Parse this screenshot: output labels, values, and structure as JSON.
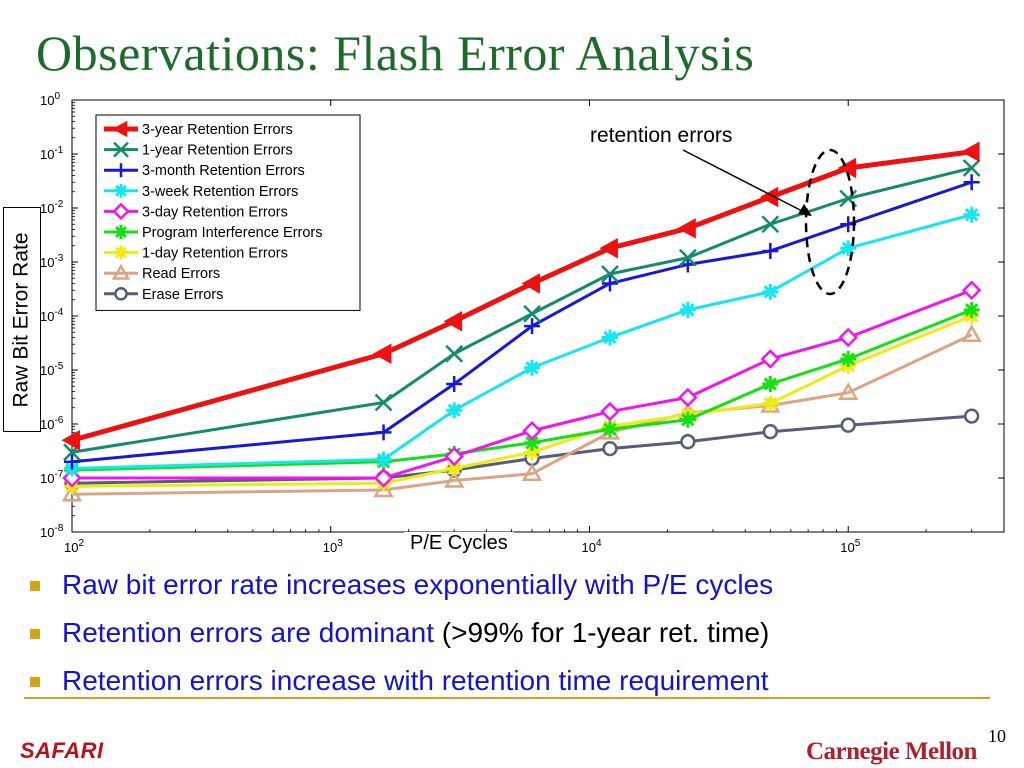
{
  "slide": {
    "title": "Observations: Flash Error Analysis",
    "page_number": "10",
    "logo_left": "SAFARI",
    "logo_right": "Carnegie Mellon",
    "accent_color": "#d6a11c",
    "title_color": "#1d6b2c",
    "bullets": [
      {
        "parts": [
          {
            "text": "Raw bit error rate increases exponentially with P/E cycles",
            "color": "blue"
          }
        ]
      },
      {
        "parts": [
          {
            "text": "Retention errors are dominant",
            "color": "blue"
          },
          {
            "text": " (>99% for 1-year ret. time)",
            "color": "black"
          }
        ]
      },
      {
        "parts": [
          {
            "text": "Retention errors increase with retention time requirement",
            "color": "blue"
          }
        ]
      }
    ]
  },
  "chart_data": {
    "type": "line",
    "xlabel": "P/E Cycles",
    "ylabel": "Raw Bit Error Rate",
    "x_scale": "log",
    "y_scale": "log",
    "xlim": [
      100,
      400000
    ],
    "ylim": [
      1e-08,
      1
    ],
    "x_ticks": [
      {
        "value": 100,
        "base": "10",
        "exp": "2"
      },
      {
        "value": 1000,
        "base": "10",
        "exp": "3"
      },
      {
        "value": 10000,
        "base": "10",
        "exp": "4"
      },
      {
        "value": 100000,
        "base": "10",
        "exp": "5"
      }
    ],
    "y_ticks": [
      {
        "value": 1,
        "base": "10",
        "exp": "0"
      },
      {
        "value": 0.1,
        "base": "10",
        "exp": "-1"
      },
      {
        "value": 0.01,
        "base": "10",
        "exp": "-2"
      },
      {
        "value": 0.001,
        "base": "10",
        "exp": "-3"
      },
      {
        "value": 0.0001,
        "base": "10",
        "exp": "-4"
      },
      {
        "value": 1e-05,
        "base": "10",
        "exp": "-5"
      },
      {
        "value": 1e-06,
        "base": "10",
        "exp": "-6"
      },
      {
        "value": 1e-07,
        "base": "10",
        "exp": "-7"
      },
      {
        "value": 1e-08,
        "base": "10",
        "exp": "-8"
      }
    ],
    "grid": false,
    "legend_position": "top-left",
    "x": [
      100,
      1600,
      3000,
      6000,
      12000,
      24000,
      50000,
      100000,
      300000
    ],
    "series": [
      {
        "name": "3-year Retention Errors",
        "color": "#ee1111",
        "marker": "triangle-left",
        "values": [
          5e-07,
          2e-05,
          8e-05,
          0.0004,
          0.0018,
          0.0042,
          0.016,
          0.055,
          0.11
        ]
      },
      {
        "name": "1-year Retention Errors",
        "color": "#148a6e",
        "marker": "x",
        "values": [
          3e-07,
          2.5e-06,
          2e-05,
          0.00011,
          0.0006,
          0.0012,
          0.005,
          0.015,
          0.055
        ]
      },
      {
        "name": "3-month Retention Errors",
        "color": "#1818d8",
        "marker": "plus",
        "values": [
          2e-07,
          7e-07,
          5.5e-06,
          6.5e-05,
          0.0004,
          0.0009,
          0.0016,
          0.005,
          0.03
        ]
      },
      {
        "name": "3-week Retention Errors",
        "color": "#16e6f0",
        "marker": "star",
        "values": [
          1.5e-07,
          2.2e-07,
          1.8e-06,
          1.1e-05,
          4e-05,
          0.00013,
          0.00028,
          0.0018,
          0.0075
        ]
      },
      {
        "name": "3-day Retention Errors",
        "color": "#f014f0",
        "marker": "diamond",
        "values": [
          1e-07,
          1e-07,
          2.5e-07,
          7.5e-07,
          1.7e-06,
          3.1e-06,
          1.6e-05,
          4e-05,
          0.0003
        ]
      },
      {
        "name": "Program Interference Errors",
        "color": "#14e014",
        "marker": "star",
        "values": [
          1.4e-07,
          2e-07,
          2.8e-07,
          4.5e-07,
          8e-07,
          1.2e-06,
          5.5e-06,
          1.6e-05,
          0.00013
        ]
      },
      {
        "name": "1-day Retention Errors",
        "color": "#ecec14",
        "marker": "star",
        "values": [
          7e-08,
          8e-08,
          1.5e-07,
          3e-07,
          9e-07,
          1.5e-06,
          2.4e-06,
          1.2e-05,
          0.0001
        ]
      },
      {
        "name": "Read Errors",
        "color": "#dba487",
        "marker": "triangle-up",
        "values": [
          5e-08,
          6e-08,
          9e-08,
          1.2e-07,
          7e-07,
          1.6e-06,
          2.2e-06,
          3.8e-06,
          4.5e-05
        ]
      },
      {
        "name": "Erase Errors",
        "color": "#565d7a",
        "marker": "circle",
        "values": [
          8e-08,
          1e-07,
          1.4e-07,
          2.3e-07,
          3.5e-07,
          4.7e-07,
          7.2e-07,
          9.5e-07,
          1.4e-06
        ]
      }
    ],
    "annotations": [
      {
        "text": "retention errors"
      }
    ]
  }
}
